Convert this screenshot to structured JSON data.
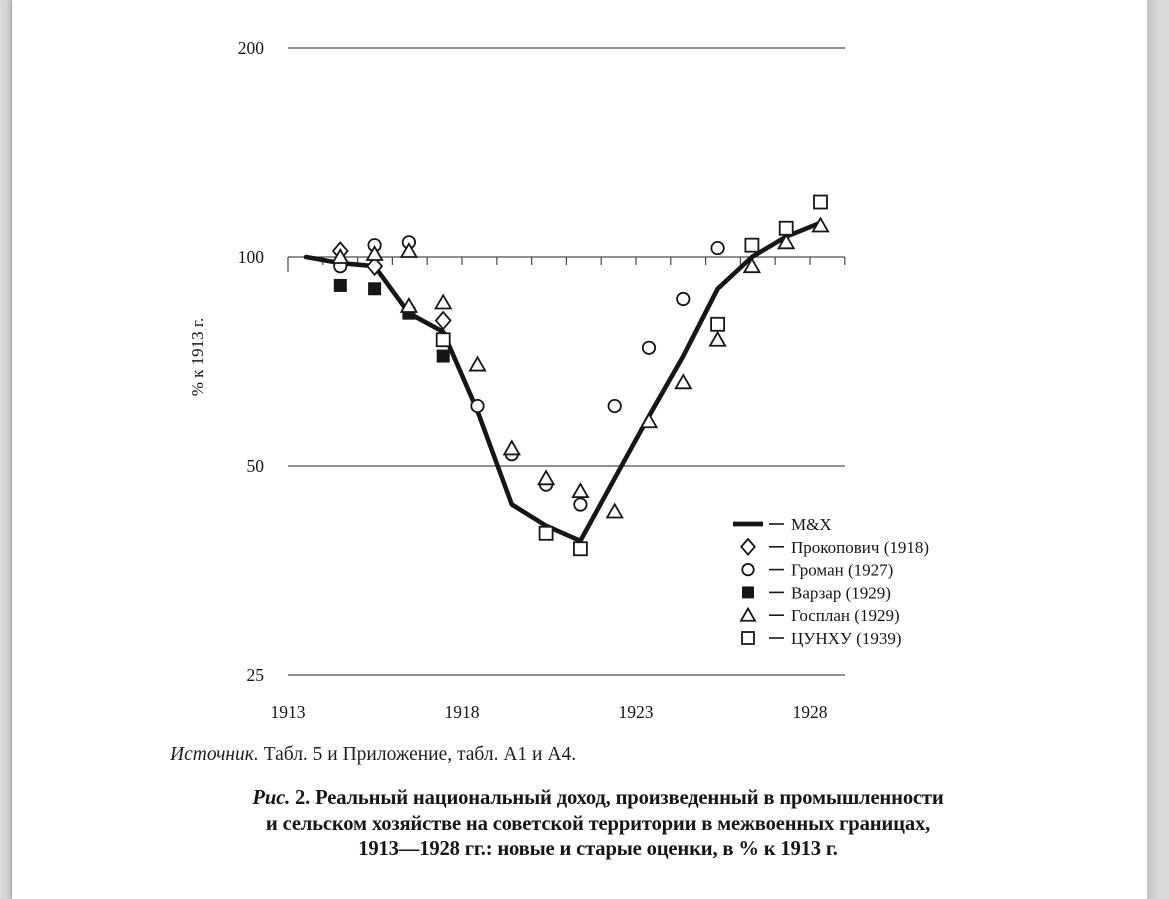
{
  "page": {
    "source_label": "Источник.",
    "source_text": " Табл. 5 и Приложение, табл. А1 и А4.",
    "caption_prefix": "Рис.",
    "caption_line1_rest": " 2. Реальный национальный доход, произведенный в промышленности",
    "caption_line2": "и сельском хозяйстве на советской территории в межвоенных границах,",
    "caption_line3": "1913—1928 гг.: новые и старые оценки, в % к 1913 г."
  },
  "chart_data": {
    "type": "line",
    "title": "",
    "xlabel": "",
    "ylabel": "% к 1913 г.",
    "y_scale": "log2",
    "ylim": [
      25,
      200
    ],
    "yticks": [
      200,
      100,
      50,
      25
    ],
    "xticks": [
      1913,
      1918,
      1923,
      1928
    ],
    "x_axis": {
      "start": 1913,
      "end": 1929,
      "minor_tick_every_year": true
    },
    "grid": "horizontal-only",
    "legend_position": "inside-right-middle",
    "ink_color": "#161616",
    "grid_color": "#4d4d4d",
    "series": [
      {
        "name": "М&Х",
        "marker": "thick-line",
        "points": [
          [
            1913,
            100
          ],
          [
            1914,
            98
          ],
          [
            1915,
            97
          ],
          [
            1916,
            83
          ],
          [
            1917,
            78
          ],
          [
            1918,
            60
          ],
          [
            1919,
            44
          ],
          [
            1920,
            41
          ],
          [
            1921,
            39
          ],
          [
            1922,
            48
          ],
          [
            1923,
            59
          ],
          [
            1924,
            72
          ],
          [
            1925,
            90
          ],
          [
            1926,
            100
          ],
          [
            1927,
            107
          ],
          [
            1928,
            112
          ]
        ]
      },
      {
        "name": "Прокопович (1918)",
        "marker": "diamond",
        "points": [
          [
            1914,
            102
          ],
          [
            1915,
            97
          ],
          [
            1917,
            81
          ]
        ]
      },
      {
        "name": "Громан (1927)",
        "marker": "circle",
        "points": [
          [
            1914,
            97
          ],
          [
            1915,
            104
          ],
          [
            1916,
            105
          ],
          [
            1918,
            61
          ],
          [
            1919,
            52
          ],
          [
            1920,
            47
          ],
          [
            1921,
            44
          ],
          [
            1922,
            61
          ],
          [
            1923,
            74
          ],
          [
            1924,
            87
          ],
          [
            1925,
            103
          ]
        ]
      },
      {
        "name": "Варзар (1929)",
        "marker": "filled-square",
        "points": [
          [
            1914,
            91
          ],
          [
            1915,
            90
          ],
          [
            1916,
            83
          ],
          [
            1917,
            72
          ]
        ]
      },
      {
        "name": "Госплан (1929)",
        "marker": "triangle",
        "points": [
          [
            1914,
            100
          ],
          [
            1915,
            101
          ],
          [
            1916,
            102
          ],
          [
            1916,
            85
          ],
          [
            1917,
            86
          ],
          [
            1918,
            70
          ],
          [
            1919,
            53
          ],
          [
            1920,
            48
          ],
          [
            1921,
            46
          ],
          [
            1922,
            43
          ],
          [
            1923,
            58
          ],
          [
            1924,
            66
          ],
          [
            1925,
            76
          ],
          [
            1926,
            97
          ],
          [
            1927,
            105
          ],
          [
            1928,
            111
          ]
        ]
      },
      {
        "name": "ЦУНХУ (1939)",
        "marker": "square",
        "points": [
          [
            1917,
            76
          ],
          [
            1920,
            40
          ],
          [
            1921,
            38
          ],
          [
            1925,
            80
          ],
          [
            1926,
            104
          ],
          [
            1927,
            110
          ],
          [
            1928,
            120
          ]
        ]
      }
    ]
  }
}
